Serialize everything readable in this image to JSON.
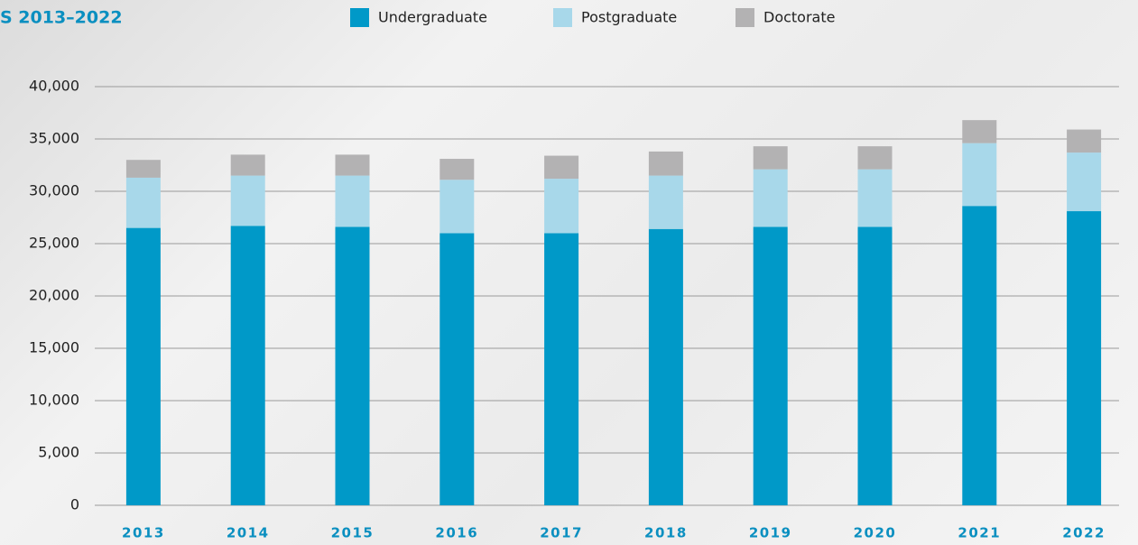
{
  "chart_data": {
    "type": "stacked_bar",
    "title": "S 2013–2022",
    "categories": [
      "2013",
      "2014",
      "2015",
      "2016",
      "2017",
      "2018",
      "2019",
      "2020",
      "2021",
      "2022"
    ],
    "series": [
      {
        "name": "Undergraduate",
        "color": "#0099c8",
        "values": [
          26500,
          26700,
          26600,
          26000,
          26000,
          26400,
          26600,
          26600,
          28600,
          28100
        ]
      },
      {
        "name": "Postgraduate",
        "color": "#a8d8ea",
        "values": [
          4800,
          4800,
          4900,
          5100,
          5200,
          5100,
          5500,
          5500,
          6000,
          5600
        ]
      },
      {
        "name": "Doctorate",
        "color": "#b3b2b3",
        "values": [
          1700,
          2000,
          2000,
          2000,
          2200,
          2300,
          2200,
          2200,
          2200,
          2200
        ]
      }
    ],
    "ylim": [
      0,
      40000
    ],
    "yticks": [
      0,
      {
        "value": 5000,
        "label": "5,000"
      },
      {
        "value": 10000,
        "label": "10,000"
      },
      {
        "value": 15000,
        "label": "15,000"
      },
      {
        "value": 20000,
        "label": "20,000"
      },
      {
        "value": 25000,
        "label": "25,000"
      },
      {
        "value": 30000,
        "label": "30,000"
      },
      {
        "value": 35000,
        "label": "35,000"
      },
      {
        "value": 40000,
        "label": "40,000"
      }
    ],
    "grid": true,
    "legend": "top"
  }
}
